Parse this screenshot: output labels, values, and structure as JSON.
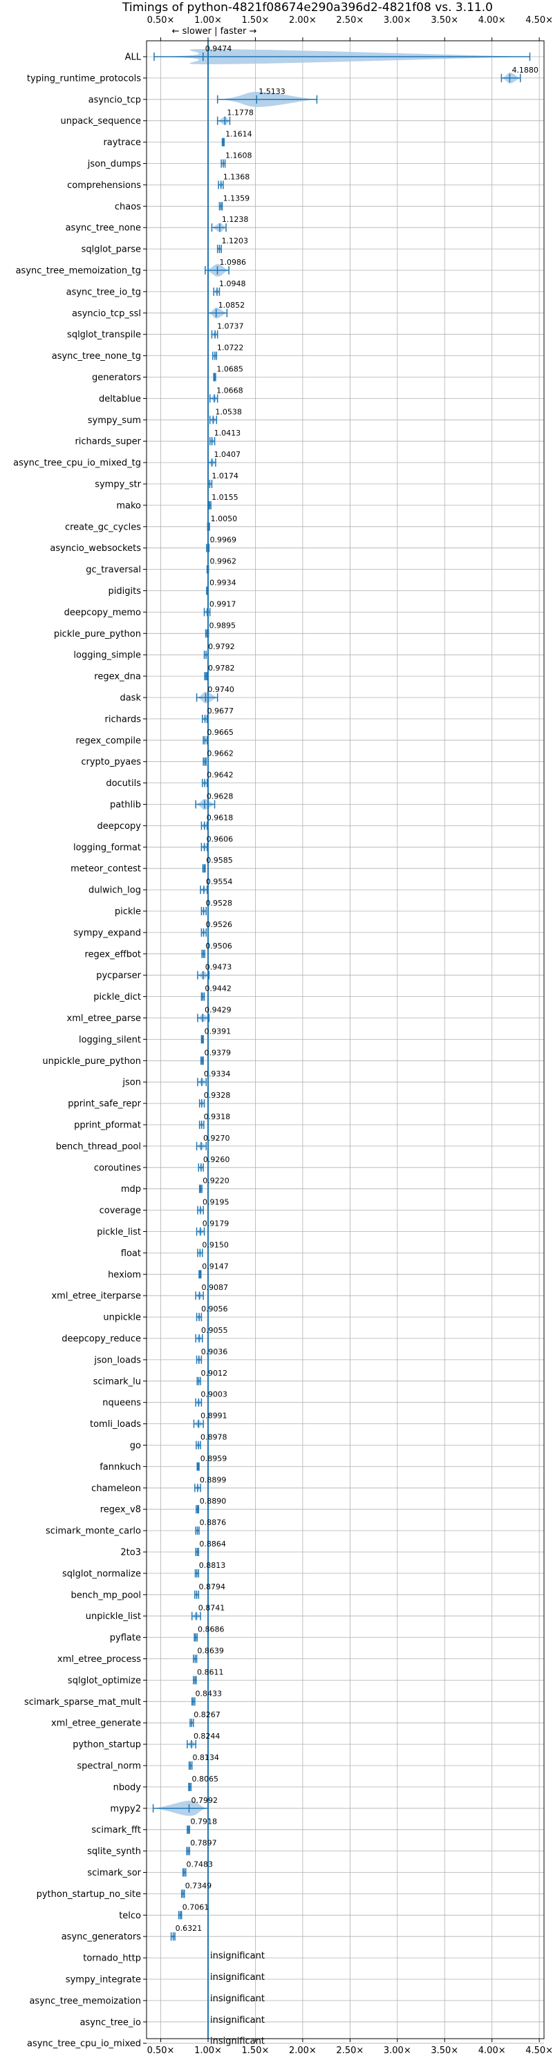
{
  "chart_data": {
    "type": "violin",
    "title": "Timings of python-4821f08674e290a396d2-4821f08 vs. 3.11.0",
    "direction_label": "← slower | faster →",
    "xlim": [
      0.35,
      4.55
    ],
    "x_ticks": [
      0.5,
      1.0,
      1.5,
      2.0,
      2.5,
      3.0,
      3.5,
      4.0,
      4.5
    ],
    "x_tick_labels": [
      "0.50×",
      "1.00×",
      "1.50×",
      "2.00×",
      "2.50×",
      "3.00×",
      "3.50×",
      "4.00×",
      "4.50×"
    ],
    "reference_line": 1.0,
    "grid": true,
    "colors": {
      "violin": "#a9c9e6",
      "line": "#1f77b4"
    },
    "insignificant_label": "insignificant",
    "benchmarks": [
      {
        "name": "ALL",
        "value": 0.9474,
        "label": "0.9474",
        "min": 0.43,
        "max": 4.4
      },
      {
        "name": "typing_runtime_protocols",
        "value": 4.188,
        "label": "4.1880",
        "min": 4.1,
        "max": 4.3
      },
      {
        "name": "asyncio_tcp",
        "value": 1.5133,
        "label": "1.5133",
        "min": 1.1,
        "max": 2.15
      },
      {
        "name": "unpack_sequence",
        "value": 1.1778,
        "label": "1.1778",
        "min": 1.1,
        "max": 1.23
      },
      {
        "name": "raytrace",
        "value": 1.1614,
        "label": "1.1614",
        "min": 1.15,
        "max": 1.17
      },
      {
        "name": "json_dumps",
        "value": 1.1608,
        "label": "1.1608",
        "min": 1.14,
        "max": 1.18
      },
      {
        "name": "comprehensions",
        "value": 1.1368,
        "label": "1.1368",
        "min": 1.11,
        "max": 1.16
      },
      {
        "name": "chaos",
        "value": 1.1359,
        "label": "1.1359",
        "min": 1.12,
        "max": 1.15
      },
      {
        "name": "async_tree_none",
        "value": 1.1238,
        "label": "1.1238",
        "min": 1.04,
        "max": 1.19
      },
      {
        "name": "sqlglot_parse",
        "value": 1.1203,
        "label": "1.1203",
        "min": 1.1,
        "max": 1.14
      },
      {
        "name": "async_tree_memoization_tg",
        "value": 1.0986,
        "label": "1.0986",
        "min": 0.97,
        "max": 1.22
      },
      {
        "name": "async_tree_io_tg",
        "value": 1.0948,
        "label": "1.0948",
        "min": 1.06,
        "max": 1.12
      },
      {
        "name": "asyncio_tcp_ssl",
        "value": 1.0852,
        "label": "1.0852",
        "min": 1.0,
        "max": 1.2
      },
      {
        "name": "sqlglot_transpile",
        "value": 1.0737,
        "label": "1.0737",
        "min": 1.04,
        "max": 1.1
      },
      {
        "name": "async_tree_none_tg",
        "value": 1.0722,
        "label": "1.0722",
        "min": 1.05,
        "max": 1.09
      },
      {
        "name": "generators",
        "value": 1.0685,
        "label": "1.0685",
        "min": 1.06,
        "max": 1.08
      },
      {
        "name": "deltablue",
        "value": 1.0668,
        "label": "1.0668",
        "min": 1.02,
        "max": 1.1
      },
      {
        "name": "sympy_sum",
        "value": 1.0538,
        "label": "1.0538",
        "min": 1.02,
        "max": 1.09
      },
      {
        "name": "richards_super",
        "value": 1.0413,
        "label": "1.0413",
        "min": 1.02,
        "max": 1.07
      },
      {
        "name": "async_tree_cpu_io_mixed_tg",
        "value": 1.0407,
        "label": "1.0407",
        "min": 1.0,
        "max": 1.08
      },
      {
        "name": "sympy_str",
        "value": 1.0174,
        "label": "1.0174",
        "min": 1.0,
        "max": 1.04
      },
      {
        "name": "mako",
        "value": 1.0155,
        "label": "1.0155",
        "min": 1.005,
        "max": 1.03
      },
      {
        "name": "create_gc_cycles",
        "value": 1.005,
        "label": "1.0050",
        "min": 0.995,
        "max": 1.015
      },
      {
        "name": "asyncio_websockets",
        "value": 0.9969,
        "label": "0.9969",
        "min": 0.985,
        "max": 1.01
      },
      {
        "name": "gc_traversal",
        "value": 0.9962,
        "label": "0.9962",
        "min": 0.99,
        "max": 1.005
      },
      {
        "name": "pidigits",
        "value": 0.9934,
        "label": "0.9934",
        "min": 0.985,
        "max": 1.0
      },
      {
        "name": "deepcopy_memo",
        "value": 0.9917,
        "label": "0.9917",
        "min": 0.96,
        "max": 1.02
      },
      {
        "name": "pickle_pure_python",
        "value": 0.9895,
        "label": "0.9895",
        "min": 0.975,
        "max": 1.005
      },
      {
        "name": "logging_simple",
        "value": 0.9792,
        "label": "0.9792",
        "min": 0.96,
        "max": 1.0
      },
      {
        "name": "regex_dna",
        "value": 0.9782,
        "label": "0.9782",
        "min": 0.965,
        "max": 0.99
      },
      {
        "name": "dask",
        "value": 0.974,
        "label": "0.9740",
        "min": 0.88,
        "max": 1.1
      },
      {
        "name": "richards",
        "value": 0.9677,
        "label": "0.9677",
        "min": 0.94,
        "max": 0.99
      },
      {
        "name": "regex_compile",
        "value": 0.9665,
        "label": "0.9665",
        "min": 0.95,
        "max": 0.99
      },
      {
        "name": "crypto_pyaes",
        "value": 0.9662,
        "label": "0.9662",
        "min": 0.95,
        "max": 0.98
      },
      {
        "name": "docutils",
        "value": 0.9642,
        "label": "0.9642",
        "min": 0.94,
        "max": 0.99
      },
      {
        "name": "pathlib",
        "value": 0.9628,
        "label": "0.9628",
        "min": 0.87,
        "max": 1.07
      },
      {
        "name": "deepcopy",
        "value": 0.9618,
        "label": "0.9618",
        "min": 0.93,
        "max": 0.99
      },
      {
        "name": "logging_format",
        "value": 0.9606,
        "label": "0.9606",
        "min": 0.93,
        "max": 0.99
      },
      {
        "name": "meteor_contest",
        "value": 0.9585,
        "label": "0.9585",
        "min": 0.945,
        "max": 0.97
      },
      {
        "name": "dulwich_log",
        "value": 0.9554,
        "label": "0.9554",
        "min": 0.92,
        "max": 0.99
      },
      {
        "name": "pickle",
        "value": 0.9528,
        "label": "0.9528",
        "min": 0.93,
        "max": 0.98
      },
      {
        "name": "sympy_expand",
        "value": 0.9526,
        "label": "0.9526",
        "min": 0.93,
        "max": 0.98
      },
      {
        "name": "regex_effbot",
        "value": 0.9506,
        "label": "0.9506",
        "min": 0.935,
        "max": 0.965
      },
      {
        "name": "pycparser",
        "value": 0.9473,
        "label": "0.9473",
        "min": 0.89,
        "max": 1.01
      },
      {
        "name": "pickle_dict",
        "value": 0.9442,
        "label": "0.9442",
        "min": 0.93,
        "max": 0.96
      },
      {
        "name": "xml_etree_parse",
        "value": 0.9429,
        "label": "0.9429",
        "min": 0.89,
        "max": 1.01
      },
      {
        "name": "logging_silent",
        "value": 0.9391,
        "label": "0.9391",
        "min": 0.93,
        "max": 0.95
      },
      {
        "name": "unpickle_pure_python",
        "value": 0.9379,
        "label": "0.9379",
        "min": 0.925,
        "max": 0.95
      },
      {
        "name": "json",
        "value": 0.9334,
        "label": "0.9334",
        "min": 0.89,
        "max": 0.98
      },
      {
        "name": "pprint_safe_repr",
        "value": 0.9328,
        "label": "0.9328",
        "min": 0.91,
        "max": 0.96
      },
      {
        "name": "pprint_pformat",
        "value": 0.9318,
        "label": "0.9318",
        "min": 0.91,
        "max": 0.955
      },
      {
        "name": "bench_thread_pool",
        "value": 0.927,
        "label": "0.9270",
        "min": 0.88,
        "max": 0.98
      },
      {
        "name": "coroutines",
        "value": 0.926,
        "label": "0.9260",
        "min": 0.9,
        "max": 0.95
      },
      {
        "name": "mdp",
        "value": 0.922,
        "label": "0.9220",
        "min": 0.91,
        "max": 0.935
      },
      {
        "name": "coverage",
        "value": 0.9195,
        "label": "0.9195",
        "min": 0.89,
        "max": 0.95
      },
      {
        "name": "pickle_list",
        "value": 0.9179,
        "label": "0.9179",
        "min": 0.88,
        "max": 0.96
      },
      {
        "name": "float",
        "value": 0.915,
        "label": "0.9150",
        "min": 0.89,
        "max": 0.94
      },
      {
        "name": "hexiom",
        "value": 0.9147,
        "label": "0.9147",
        "min": 0.905,
        "max": 0.925
      },
      {
        "name": "xml_etree_iterparse",
        "value": 0.9087,
        "label": "0.9087",
        "min": 0.87,
        "max": 0.95
      },
      {
        "name": "unpickle",
        "value": 0.9056,
        "label": "0.9056",
        "min": 0.88,
        "max": 0.93
      },
      {
        "name": "deepcopy_reduce",
        "value": 0.9055,
        "label": "0.9055",
        "min": 0.87,
        "max": 0.94
      },
      {
        "name": "json_loads",
        "value": 0.9036,
        "label": "0.9036",
        "min": 0.88,
        "max": 0.93
      },
      {
        "name": "scimark_lu",
        "value": 0.9012,
        "label": "0.9012",
        "min": 0.885,
        "max": 0.92
      },
      {
        "name": "nqueens",
        "value": 0.9003,
        "label": "0.9003",
        "min": 0.87,
        "max": 0.93
      },
      {
        "name": "tomli_loads",
        "value": 0.8991,
        "label": "0.8991",
        "min": 0.85,
        "max": 0.95
      },
      {
        "name": "go",
        "value": 0.8978,
        "label": "0.8978",
        "min": 0.875,
        "max": 0.92
      },
      {
        "name": "fannkuch",
        "value": 0.8959,
        "label": "0.8959",
        "min": 0.885,
        "max": 0.905
      },
      {
        "name": "chameleon",
        "value": 0.8899,
        "label": "0.8899",
        "min": 0.86,
        "max": 0.92
      },
      {
        "name": "regex_v8",
        "value": 0.889,
        "label": "0.8890",
        "min": 0.875,
        "max": 0.9
      },
      {
        "name": "scimark_monte_carlo",
        "value": 0.8876,
        "label": "0.8876",
        "min": 0.87,
        "max": 0.905
      },
      {
        "name": "2to3",
        "value": 0.8864,
        "label": "0.8864",
        "min": 0.87,
        "max": 0.9
      },
      {
        "name": "sqlglot_normalize",
        "value": 0.8813,
        "label": "0.8813",
        "min": 0.865,
        "max": 0.9
      },
      {
        "name": "bench_mp_pool",
        "value": 0.8794,
        "label": "0.8794",
        "min": 0.86,
        "max": 0.9
      },
      {
        "name": "unpickle_list",
        "value": 0.8741,
        "label": "0.8741",
        "min": 0.83,
        "max": 0.92
      },
      {
        "name": "pyflate",
        "value": 0.8686,
        "label": "0.8686",
        "min": 0.855,
        "max": 0.885
      },
      {
        "name": "xml_etree_process",
        "value": 0.8639,
        "label": "0.8639",
        "min": 0.845,
        "max": 0.88
      },
      {
        "name": "sqlglot_optimize",
        "value": 0.8611,
        "label": "0.8611",
        "min": 0.845,
        "max": 0.875
      },
      {
        "name": "scimark_sparse_mat_mult",
        "value": 0.8433,
        "label": "0.8433",
        "min": 0.83,
        "max": 0.86
      },
      {
        "name": "xml_etree_generate",
        "value": 0.8267,
        "label": "0.8267",
        "min": 0.81,
        "max": 0.845
      },
      {
        "name": "python_startup",
        "value": 0.8244,
        "label": "0.8244",
        "min": 0.78,
        "max": 0.87
      },
      {
        "name": "spectral_norm",
        "value": 0.8134,
        "label": "0.8134",
        "min": 0.8,
        "max": 0.83
      },
      {
        "name": "nbody",
        "value": 0.8065,
        "label": "0.8065",
        "min": 0.795,
        "max": 0.82
      },
      {
        "name": "mypy2",
        "value": 0.7992,
        "label": "0.7992",
        "min": 0.42,
        "max": 1.0
      },
      {
        "name": "scimark_fft",
        "value": 0.7918,
        "label": "0.7918",
        "min": 0.78,
        "max": 0.805
      },
      {
        "name": "sqlite_synth",
        "value": 0.7897,
        "label": "0.7897",
        "min": 0.775,
        "max": 0.805
      },
      {
        "name": "scimark_sor",
        "value": 0.7483,
        "label": "0.7483",
        "min": 0.735,
        "max": 0.765
      },
      {
        "name": "python_startup_no_site",
        "value": 0.7349,
        "label": "0.7349",
        "min": 0.72,
        "max": 0.75
      },
      {
        "name": "telco",
        "value": 0.7061,
        "label": "0.7061",
        "min": 0.69,
        "max": 0.72
      },
      {
        "name": "async_generators",
        "value": 0.6321,
        "label": "0.6321",
        "min": 0.61,
        "max": 0.65
      },
      {
        "name": "tornado_http",
        "value": null,
        "label": "insignificant"
      },
      {
        "name": "sympy_integrate",
        "value": null,
        "label": "insignificant"
      },
      {
        "name": "async_tree_memoization",
        "value": null,
        "label": "insignificant"
      },
      {
        "name": "async_tree_io",
        "value": null,
        "label": "insignificant"
      },
      {
        "name": "async_tree_cpu_io_mixed",
        "value": null,
        "label": "insignificant"
      }
    ]
  }
}
